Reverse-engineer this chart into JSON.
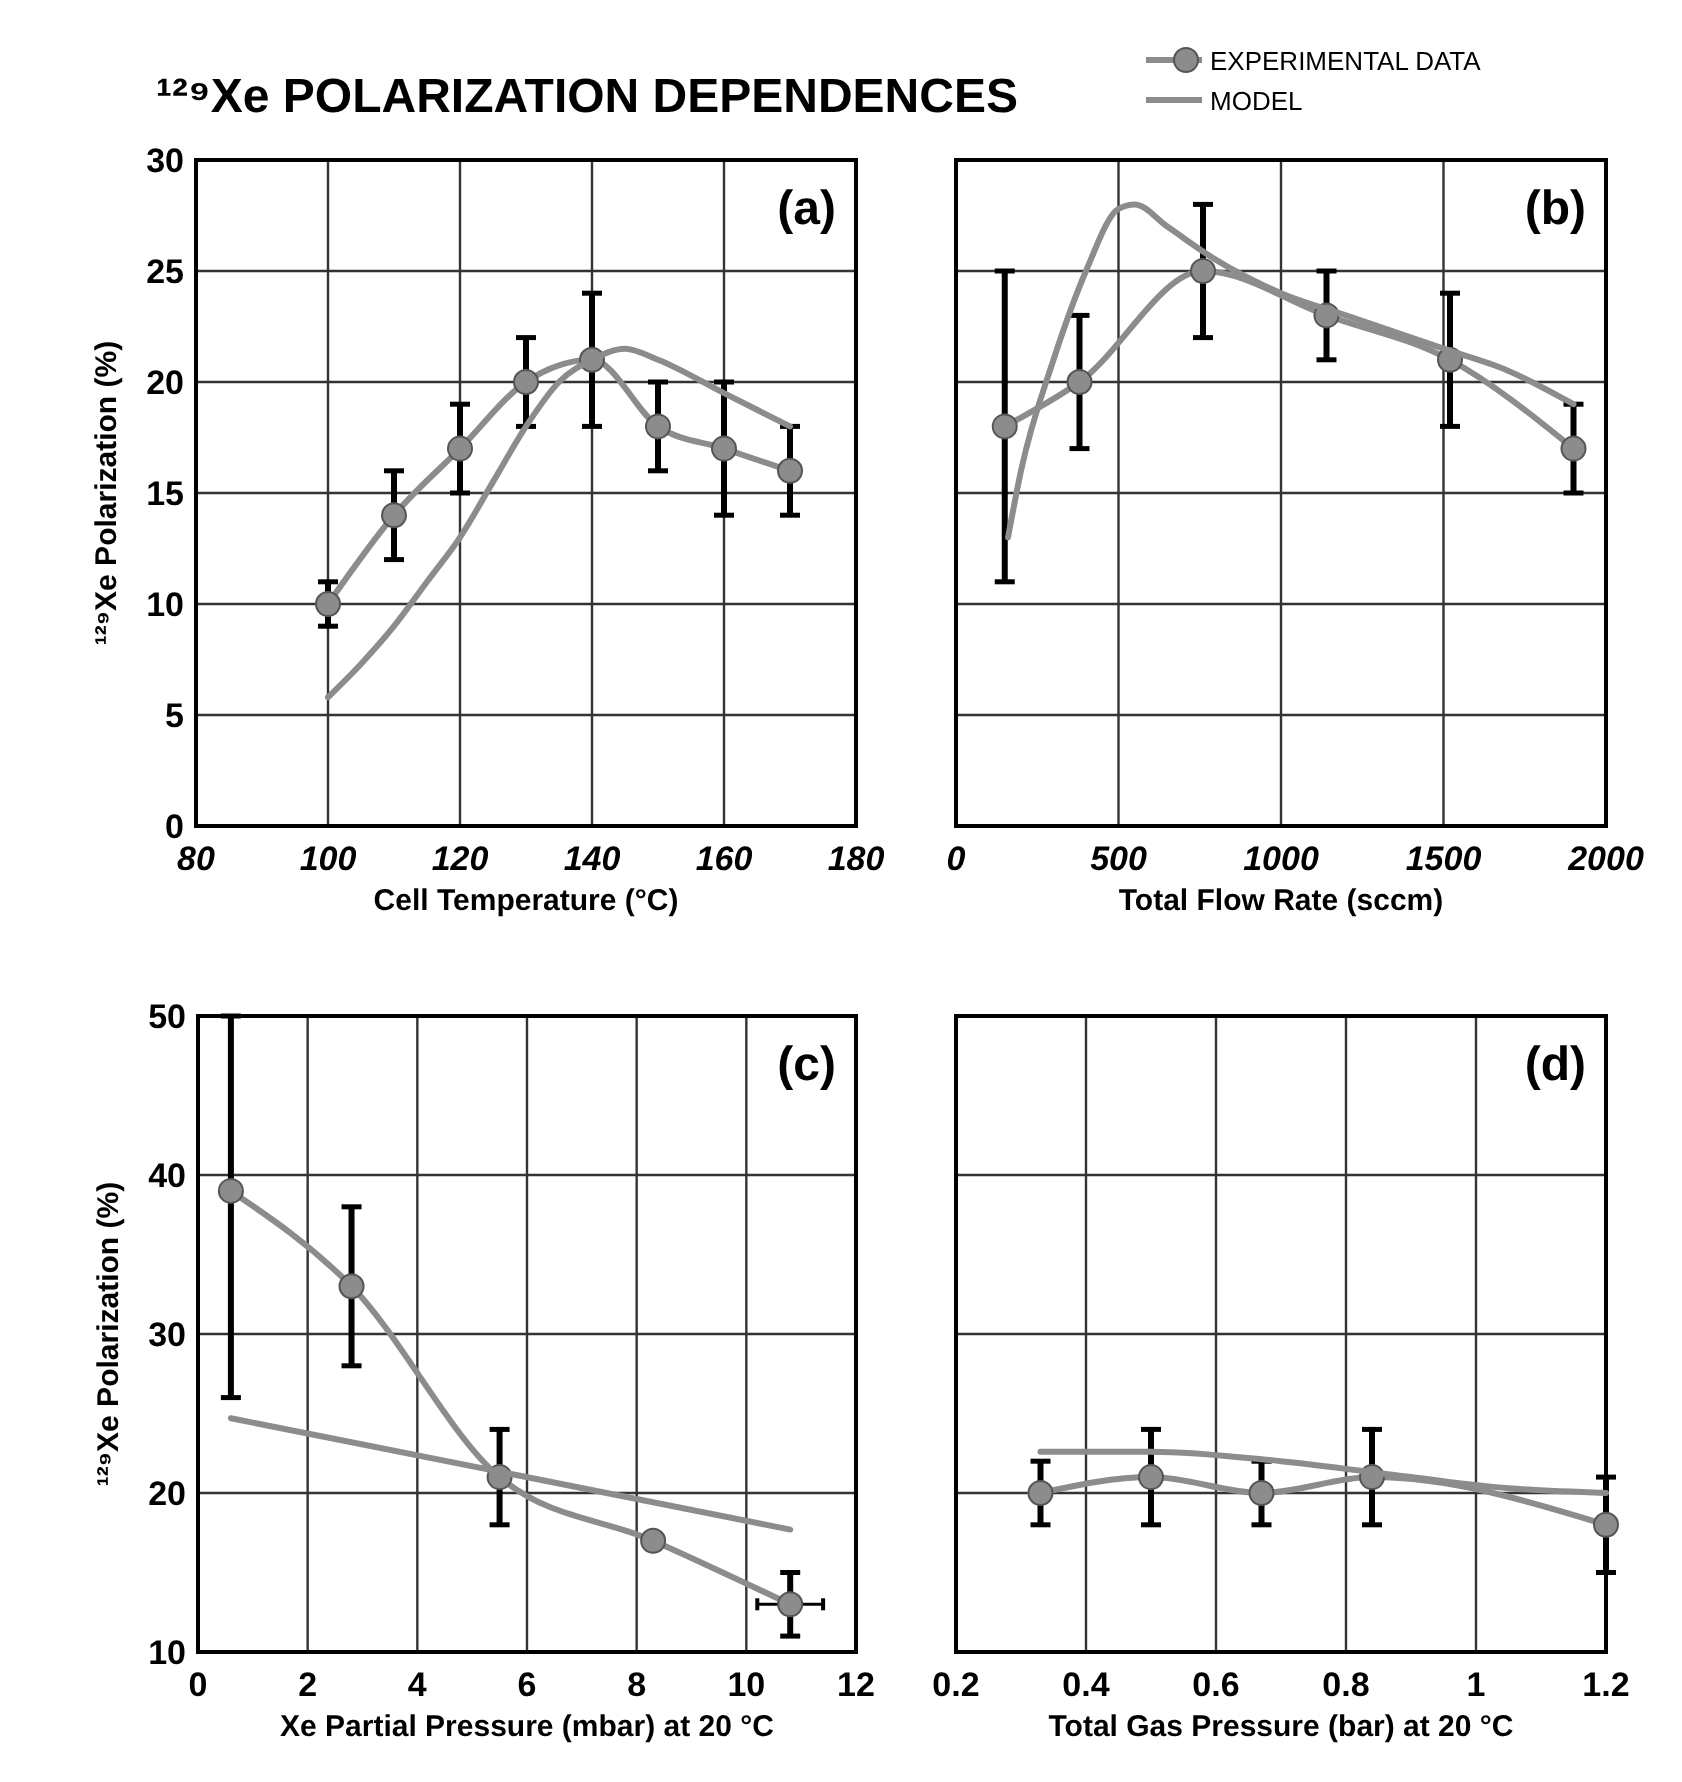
{
  "chart_data": [
    {
      "type": "line",
      "title": "¹²⁹Xe POLARIZATION DEPENDENCES",
      "legend": "top right",
      "xlabel": "Cell Temperature (°C)",
      "ylabel": "¹²⁹Xe Polarization (%)",
      "xlim": [
        80,
        180
      ],
      "ylim": [
        0,
        30
      ],
      "xticks": [
        80,
        100,
        120,
        140,
        160,
        180
      ],
      "yticks": [
        0,
        5,
        10,
        15,
        20,
        25,
        30
      ],
      "grid": true,
      "annotations": [
        "(a)"
      ],
      "series": [
        {
          "name": "EXPERIMENTAL DATA",
          "color": "#8c8c8c",
          "marker": "circle",
          "x": [
            100,
            110,
            120,
            130,
            140,
            150,
            160,
            170
          ],
          "values": [
            10,
            14,
            17,
            20,
            21,
            18,
            17,
            16
          ],
          "errors": [
            1,
            2,
            2,
            2,
            3,
            2,
            3,
            2
          ]
        },
        {
          "name": "MODEL",
          "color": "#8c8c8c",
          "x": [
            100,
            105,
            110,
            115,
            120,
            125,
            130,
            135,
            140,
            145,
            150,
            160,
            170
          ],
          "values": [
            5.8,
            7.3,
            9,
            11,
            13,
            15.5,
            18,
            20,
            21,
            21.5,
            21,
            19.5,
            18
          ]
        }
      ]
    },
    {
      "type": "line",
      "xlabel": "Total Flow Rate (sccm)",
      "xlim": [
        0,
        2000
      ],
      "ylim": [
        0,
        30
      ],
      "xticks": [
        0,
        500,
        1000,
        1500,
        2000
      ],
      "yticks": [
        0,
        5,
        10,
        15,
        20,
        25,
        30
      ],
      "tick_labels": "x",
      "grid": true,
      "annotations": [
        "(b)"
      ],
      "series": [
        {
          "color": "#8c8c8c",
          "marker": "circle",
          "x": [
            150,
            380,
            760,
            1140,
            1520,
            1900
          ],
          "values": [
            18,
            20,
            25,
            23,
            21,
            17
          ],
          "errors": [
            7,
            3,
            3,
            2,
            3,
            2
          ]
        },
        {
          "color": "#8c8c8c",
          "x": [
            160,
            200,
            300,
            400,
            500,
            550,
            650,
            800,
            1000,
            1200,
            1500,
            1700,
            1900
          ],
          "values": [
            13,
            16,
            21,
            25,
            27.8,
            28,
            27,
            25.5,
            24,
            23,
            21.5,
            20.5,
            19
          ]
        }
      ]
    },
    {
      "type": "line",
      "xlabel": "Xe Partial Pressure (mbar) at 20 °C",
      "ylabel": "¹²⁹Xe Polarization (%)",
      "xlim": [
        0,
        12
      ],
      "ylim": [
        10,
        50
      ],
      "xticks": [
        0,
        2,
        4,
        6,
        8,
        10,
        12
      ],
      "yticks": [
        10,
        20,
        30,
        40,
        50
      ],
      "grid": true,
      "annotations": [
        "(c)"
      ],
      "series": [
        {
          "color": "#8c8c8c",
          "marker": "circle",
          "x": [
            0.6,
            2.8,
            5.5,
            8.3,
            10.8
          ],
          "values": [
            39,
            33,
            21,
            17,
            13
          ],
          "errors": [
            [
              26,
              50
            ],
            [
              28,
              38
            ],
            [
              18,
              24
            ],
            null,
            [
              11,
              15
            ]
          ],
          "xerrors": [
            null,
            null,
            null,
            null,
            0.6
          ]
        },
        {
          "color": "#8c8c8c",
          "x": [
            0.6,
            10.8
          ],
          "values": [
            24.7,
            17.7
          ]
        }
      ]
    },
    {
      "type": "line",
      "xlabel": "Total Gas Pressure (bar) at 20 °C",
      "xlim": [
        0.2,
        1.2
      ],
      "ylim": [
        10,
        50
      ],
      "xticks": [
        0.2,
        0.4,
        0.6,
        0.8,
        1,
        1.2
      ],
      "yticks": [
        10,
        20,
        30,
        40,
        50
      ],
      "tick_labels": "x",
      "grid": true,
      "annotations": [
        "(d)"
      ],
      "series": [
        {
          "color": "#8c8c8c",
          "marker": "circle",
          "x": [
            0.33,
            0.5,
            0.67,
            0.84,
            1.2
          ],
          "values": [
            20,
            21,
            20,
            21,
            18
          ],
          "errors": [
            2,
            3,
            2,
            3,
            3
          ]
        },
        {
          "color": "#8c8c8c",
          "x": [
            0.33,
            0.5,
            0.7,
            0.9,
            1.05,
            1.2
          ],
          "values": [
            22.6,
            22.6,
            22,
            21,
            20.3,
            20
          ]
        }
      ]
    }
  ]
}
